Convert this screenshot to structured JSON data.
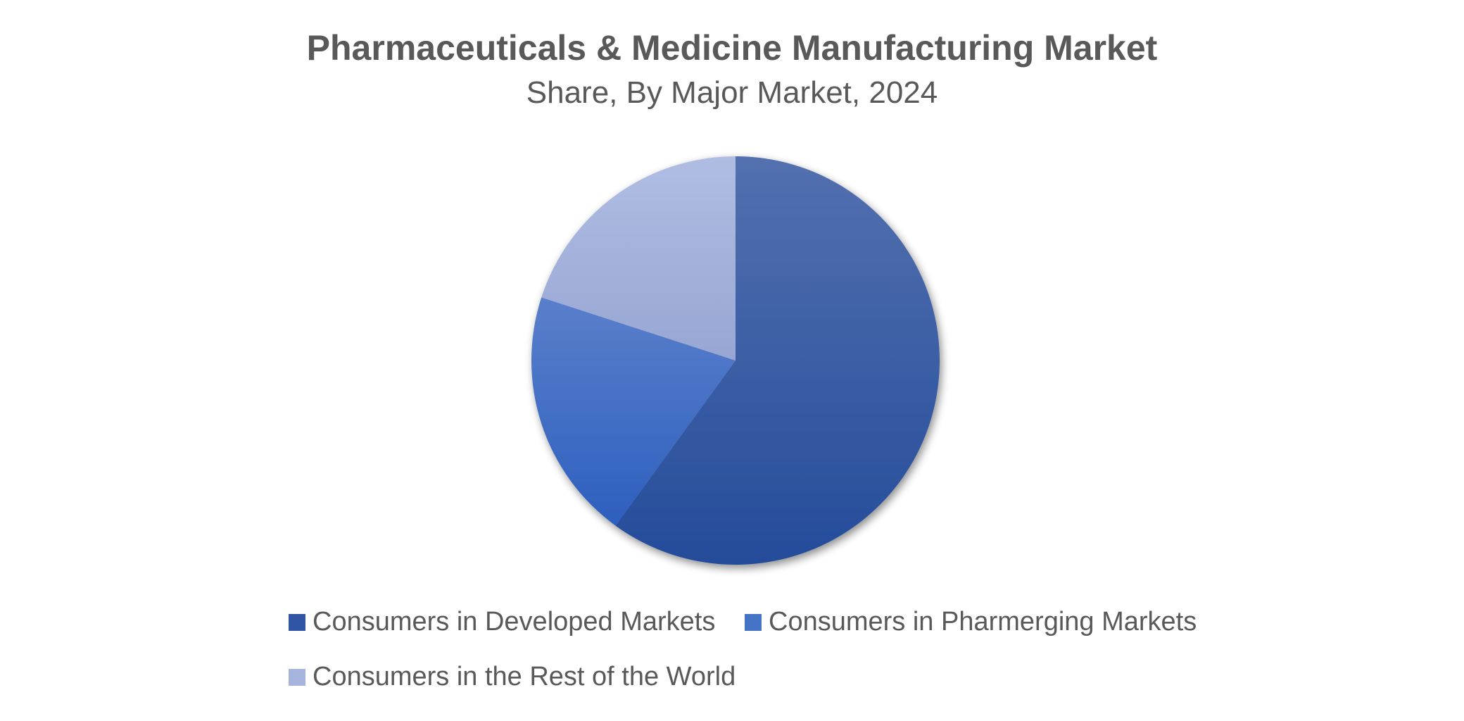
{
  "chart_data": {
    "type": "pie",
    "title": "Pharmaceuticals & Medicine Manufacturing Market",
    "subtitle": "Share, By Major Market, 2024",
    "categories": [
      "Consumers in Developed Markets",
      "Consumers in Pharmerging Markets",
      "Consumers in the Rest of the World"
    ],
    "values": [
      60,
      20,
      20
    ],
    "colors": [
      "#2F55A4",
      "#4472C4",
      "#A5B3DD"
    ],
    "start_angle_deg": 0,
    "direction": "clockwise",
    "legend": "bottom"
  }
}
